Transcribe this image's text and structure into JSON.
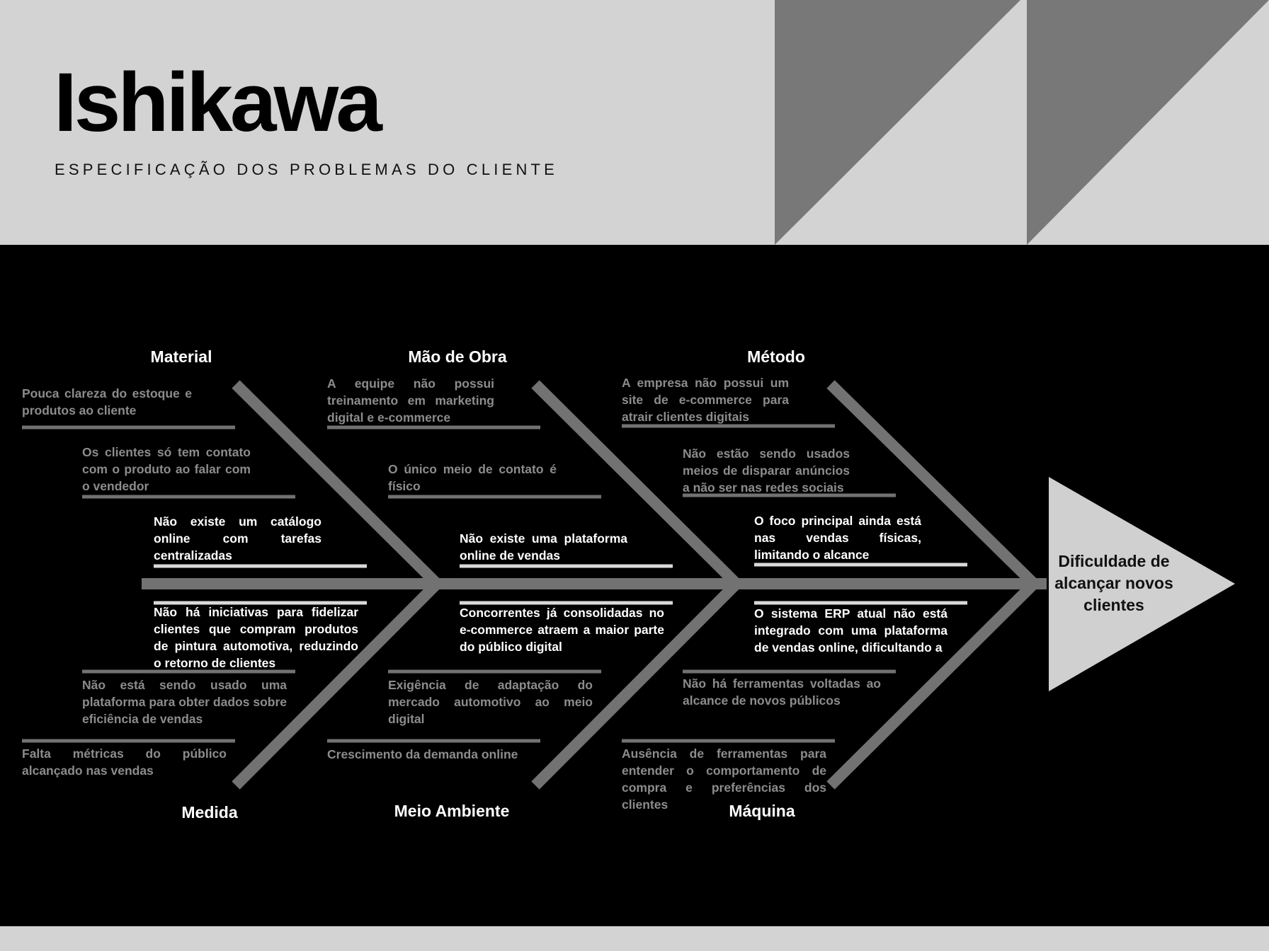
{
  "header": {
    "title": "Ishikawa",
    "subtitle": "ESPECIFICAÇÃO DOS PROBLEMAS DO CLIENTE"
  },
  "colors": {
    "background_light": "#d3d3d3",
    "background_dark": "#000000",
    "bones": "#727272",
    "triangle_decor": "#787878",
    "head": "#d0d0d0"
  },
  "effect": "Dificuldade de alcançar novos clientes",
  "categories": {
    "material": "Material",
    "mao_de_obra": "Mão de Obra",
    "metodo": "Método",
    "medida": "Medida",
    "meio_ambiente": "Meio Ambiente",
    "maquina": "Máquina"
  },
  "causes": {
    "material": [
      "Pouca clareza do estoque e produtos ao cliente",
      "Os clientes só tem contato com o produto ao falar com o vendedor",
      "Não existe um catálogo online com tarefas centralizadas"
    ],
    "mao_de_obra": [
      "A equipe não possui treinamento em marketing digital e e-commerce",
      "O único meio de contato é físico",
      "Não existe uma plataforma online de vendas"
    ],
    "metodo": [
      "A empresa não possui um site de e-commerce para atrair clientes digitais",
      "Não estão sendo usados meios de disparar anúncios a não ser nas redes sociais",
      "O foco principal ainda está nas vendas físicas, limitando o alcance"
    ],
    "medida": [
      "Não há iniciativas para fidelizar clientes que compram produtos de pintura automotiva, reduzindo o retorno de clientes",
      "Não está sendo usado uma plataforma para obter dados sobre eficiência de vendas",
      "Falta métricas do público alcançado nas vendas"
    ],
    "meio_ambiente": [
      "Concorrentes já consolidadas no e-commerce atraem a maior parte do público digital",
      "Exigência de adaptação do mercado automotivo ao meio digital",
      "Crescimento da demanda online"
    ],
    "maquina": [
      "O sistema ERP atual não está integrado com uma plataforma de vendas online, dificultando a",
      "Não há ferramentas voltadas ao alcance de novos públicos",
      "Ausência de ferramentas para entender o comportamento de compra e preferências dos clientes"
    ]
  }
}
